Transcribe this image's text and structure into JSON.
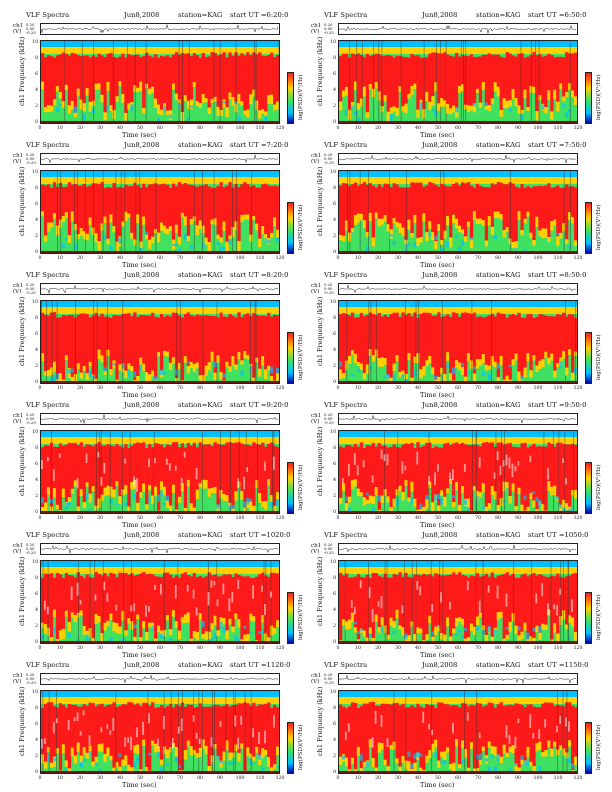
{
  "common": {
    "title": "VLF Spectra",
    "date": "Jun8,2008",
    "station": "station=KAG",
    "wave_ylabel": "ch1 (V)",
    "freq_ylabel": "ch1 Frequency (kHz)",
    "xlabel": "Time (sec)",
    "colorbar_label": "log(PSD)(V²/Hz)",
    "wave_ticks": [
      "0.20",
      "0.00",
      "-0.20"
    ],
    "freq_ticks": [
      "0",
      "2",
      "4",
      "6",
      "8",
      "10"
    ],
    "x_ticks": [
      "0",
      "10",
      "20",
      "30",
      "40",
      "50",
      "60",
      "70",
      "80",
      "90",
      "100",
      "110",
      "120"
    ],
    "colors": {
      "high": "#ff1a1a",
      "mid_high": "#ffd000",
      "mid": "#40e060",
      "low": "#00c0ff",
      "lowest": "#0000a0"
    }
  },
  "chart_data": [
    {
      "type": "heatmap",
      "title": "VLF Spectra",
      "date": "Jun8,2008",
      "station": "station=KAG",
      "start_ut": "start UT =6:20:0",
      "xlabel": "Time (sec)",
      "ylabel": "ch1 Frequency (kHz)",
      "xlim": [
        0,
        120
      ],
      "ylim": [
        0,
        10
      ],
      "colorbar": "log(PSD)(V²/Hz)"
    },
    {
      "type": "heatmap",
      "title": "VLF Spectra",
      "date": "Jun8,2008",
      "station": "station=KAG",
      "start_ut": "start UT =6:50:0",
      "xlabel": "Time (sec)",
      "ylabel": "ch1 Frequency (kHz)",
      "xlim": [
        0,
        120
      ],
      "ylim": [
        0,
        10
      ],
      "colorbar": "log(PSD)(V²/Hz)"
    },
    {
      "type": "heatmap",
      "title": "VLF Spectra",
      "date": "Jun8,2008",
      "station": "station=KAG",
      "start_ut": "start UT =7:20:0",
      "xlabel": "Time (sec)",
      "ylabel": "ch1 Frequency (kHz)",
      "xlim": [
        0,
        120
      ],
      "ylim": [
        0,
        10
      ],
      "colorbar": "log(PSD)(V²/Hz)"
    },
    {
      "type": "heatmap",
      "title": "VLF Spectra",
      "date": "Jun8,2008",
      "station": "station=KAG",
      "start_ut": "start UT =7:50:0",
      "xlabel": "Time (sec)",
      "ylabel": "ch1 Frequency (kHz)",
      "xlim": [
        0,
        120
      ],
      "ylim": [
        0,
        10
      ],
      "colorbar": "log(PSD)(V²/Hz)"
    },
    {
      "type": "heatmap",
      "title": "VLF Spectra",
      "date": "Jun8,2008",
      "station": "station=KAG",
      "start_ut": "start UT =8:20:0",
      "xlabel": "Time (sec)",
      "ylabel": "ch1 Frequency (kHz)",
      "xlim": [
        0,
        120
      ],
      "ylim": [
        0,
        10
      ],
      "colorbar": "log(PSD)(V²/Hz)"
    },
    {
      "type": "heatmap",
      "title": "VLF Spectra",
      "date": "Jun8,2008",
      "station": "station=KAG",
      "start_ut": "start UT =8:50:0",
      "xlabel": "Time (sec)",
      "ylabel": "ch1 Frequency (kHz)",
      "xlim": [
        0,
        120
      ],
      "ylim": [
        0,
        10
      ],
      "colorbar": "log(PSD)(V²/Hz)"
    },
    {
      "type": "heatmap",
      "title": "VLF Spectra",
      "date": "Jun8,2008",
      "station": "station=KAG",
      "start_ut": "start UT =9:20:0",
      "xlabel": "Time (sec)",
      "ylabel": "ch1 Frequency (kHz)",
      "xlim": [
        0,
        120
      ],
      "ylim": [
        0,
        10
      ],
      "colorbar": "log(PSD)(V²/Hz)"
    },
    {
      "type": "heatmap",
      "title": "VLF Spectra",
      "date": "Jun8,2008",
      "station": "station=KAG",
      "start_ut": "start UT =9:50:0",
      "xlabel": "Time (sec)",
      "ylabel": "ch1 Frequency (kHz)",
      "xlim": [
        0,
        120
      ],
      "ylim": [
        0,
        10
      ],
      "colorbar": "log(PSD)(V²/Hz)"
    },
    {
      "type": "heatmap",
      "title": "VLF Spectra",
      "date": "Jun8,2008",
      "station": "station=KAG",
      "start_ut": "start UT =1020:0",
      "xlabel": "Time (sec)",
      "ylabel": "ch1 Frequency (kHz)",
      "xlim": [
        0,
        120
      ],
      "ylim": [
        0,
        10
      ],
      "colorbar": "log(PSD)(V²/Hz)"
    },
    {
      "type": "heatmap",
      "title": "VLF Spectra",
      "date": "Jun8,2008",
      "station": "station=KAG",
      "start_ut": "start UT =1050:0",
      "xlabel": "Time (sec)",
      "ylabel": "ch1 Frequency (kHz)",
      "xlim": [
        0,
        120
      ],
      "ylim": [
        0,
        10
      ],
      "colorbar": "log(PSD)(V²/Hz)"
    },
    {
      "type": "heatmap",
      "title": "VLF Spectra",
      "date": "Jun8,2008",
      "station": "station=KAG",
      "start_ut": "start UT =1120:0",
      "xlabel": "Time (sec)",
      "ylabel": "ch1 Frequency (kHz)",
      "xlim": [
        0,
        120
      ],
      "ylim": [
        0,
        10
      ],
      "colorbar": "log(PSD)(V²/Hz)"
    },
    {
      "type": "heatmap",
      "title": "VLF Spectra",
      "date": "Jun8,2008",
      "station": "station=KAG",
      "start_ut": "start UT =1150:0",
      "xlabel": "Time (sec)",
      "ylabel": "ch1 Frequency (kHz)",
      "xlim": [
        0,
        120
      ],
      "ylim": [
        0,
        10
      ],
      "colorbar": "log(PSD)(V²/Hz)"
    }
  ]
}
